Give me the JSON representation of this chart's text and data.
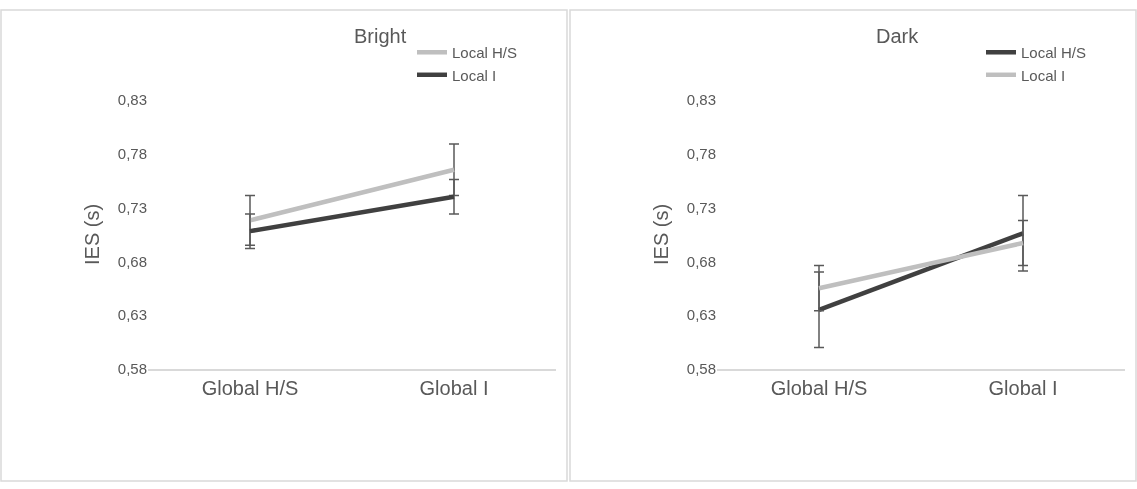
{
  "chart_data": [
    {
      "type": "line",
      "title": "Bright",
      "ylabel": "IES (s)",
      "categories": [
        "Global H/S",
        "Global I"
      ],
      "ylim": [
        0.58,
        0.83
      ],
      "yticks": [
        {
          "value": 0.58,
          "label": "0,58"
        },
        {
          "value": 0.63,
          "label": "0,63"
        },
        {
          "value": 0.68,
          "label": "0,68"
        },
        {
          "value": 0.73,
          "label": "0,73"
        },
        {
          "value": 0.78,
          "label": "0,78"
        },
        {
          "value": 0.83,
          "label": "0,83"
        }
      ],
      "grid": false,
      "legend": "top right",
      "marker": "none",
      "line_style": "solid",
      "series": [
        {
          "name": "Local H/S",
          "color": "#bfbfbf",
          "values": [
            0.718,
            0.765
          ],
          "errors": [
            0.023,
            0.024
          ]
        },
        {
          "name": "Local I",
          "color": "#404040",
          "values": [
            0.708,
            0.74
          ],
          "errors": [
            0.016,
            0.016
          ]
        }
      ]
    },
    {
      "type": "line",
      "title": "Dark",
      "ylabel": "IES (s)",
      "categories": [
        "Global H/S",
        "Global I"
      ],
      "ylim": [
        0.58,
        0.83
      ],
      "yticks": [
        {
          "value": 0.58,
          "label": "0,58"
        },
        {
          "value": 0.63,
          "label": "0,63"
        },
        {
          "value": 0.68,
          "label": "0,68"
        },
        {
          "value": 0.73,
          "label": "0,73"
        },
        {
          "value": 0.78,
          "label": "0,78"
        },
        {
          "value": 0.83,
          "label": "0,83"
        }
      ],
      "grid": false,
      "legend": "top right",
      "marker": "none",
      "line_style": "solid",
      "series": [
        {
          "name": "Local H/S",
          "color": "#404040",
          "values": [
            0.635,
            0.706
          ],
          "errors": [
            0.035,
            0.035
          ]
        },
        {
          "name": "Local I",
          "color": "#bfbfbf",
          "values": [
            0.655,
            0.697
          ],
          "errors": [
            0.021,
            0.021
          ]
        }
      ]
    }
  ]
}
